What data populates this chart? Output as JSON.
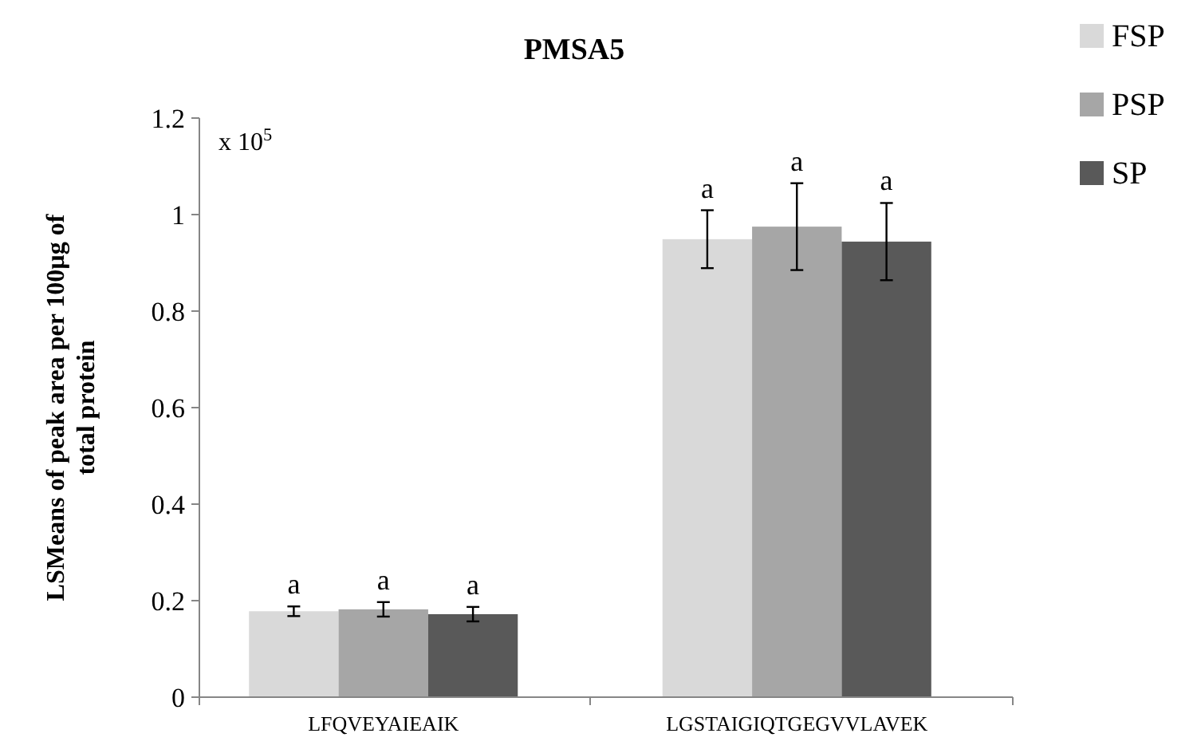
{
  "chart_data": {
    "type": "bar",
    "title": "PMSA5",
    "ylabel": "LSMeans of peak area per 100µg of total protein",
    "categories": [
      "LFQVEYAIEAIK",
      "LGSTAIGIQTGEGVVLAVEK"
    ],
    "series": [
      {
        "name": "FSP",
        "color": "#d9d9d9",
        "values": [
          0.178,
          0.949
        ],
        "errors": [
          0.01,
          0.06
        ]
      },
      {
        "name": "PSP",
        "color": "#a6a6a6",
        "values": [
          0.182,
          0.975
        ],
        "errors": [
          0.015,
          0.09
        ]
      },
      {
        "name": "SP",
        "color": "#595959",
        "values": [
          0.172,
          0.944
        ],
        "errors": [
          0.015,
          0.08
        ]
      }
    ],
    "ylim": [
      0,
      1.2
    ],
    "yticks": [
      0,
      0.2,
      0.4,
      0.6,
      0.8,
      1,
      1.2
    ],
    "grid": false,
    "legend": "top right",
    "annotations": [
      "x 10$^{5}$",
      "a",
      "a",
      "a",
      "a",
      "a",
      "a"
    ]
  }
}
